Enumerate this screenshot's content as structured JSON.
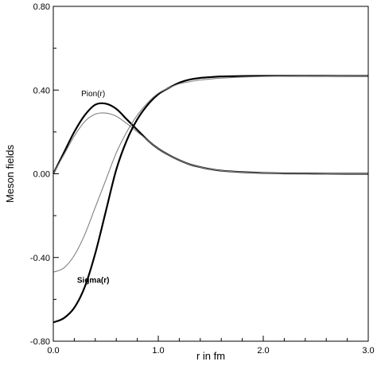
{
  "chart_data": {
    "type": "line",
    "title": "",
    "xlabel": "r in fm",
    "ylabel": "Meson fields",
    "xlim": [
      0.0,
      3.0
    ],
    "ylim": [
      -0.8,
      0.8
    ],
    "x_ticks": [
      0.0,
      1.0,
      2.0,
      3.0
    ],
    "x_tick_labels": [
      "0.0",
      "1.0",
      "2.0",
      "3.0"
    ],
    "y_ticks": [
      -0.8,
      -0.4,
      0.0,
      0.4,
      0.8
    ],
    "y_tick_labels": [
      "-0.80",
      "-0.40",
      "0.00",
      "0.40",
      "0.80"
    ],
    "grid": false,
    "annotations": [
      {
        "text": "Pion(r)",
        "x": 0.38,
        "y": 0.37,
        "bold": false
      },
      {
        "text": "Sigma(r)",
        "x": 0.38,
        "y": -0.52,
        "bold": true
      }
    ],
    "series": [
      {
        "color": "#000000",
        "weight": "thick",
        "x": [
          0.0,
          0.1,
          0.2,
          0.3,
          0.4,
          0.5,
          0.6,
          0.7,
          0.8,
          0.9,
          1.0,
          1.1,
          1.2,
          1.3,
          1.4,
          1.5,
          1.6,
          1.8,
          2.0,
          2.2,
          2.5,
          2.8,
          3.0
        ],
        "y": [
          0.0,
          0.1,
          0.2,
          0.28,
          0.33,
          0.335,
          0.31,
          0.26,
          0.21,
          0.16,
          0.12,
          0.09,
          0.065,
          0.045,
          0.032,
          0.022,
          0.015,
          0.008,
          0.004,
          0.002,
          0.001,
          0.0,
          0.0
        ]
      },
      {
        "color": "#808080",
        "weight": "thin",
        "x": [
          0.0,
          0.1,
          0.2,
          0.3,
          0.4,
          0.5,
          0.6,
          0.7,
          0.8,
          0.9,
          1.0,
          1.1,
          1.2,
          1.3,
          1.4,
          1.5,
          1.6,
          1.8,
          2.0,
          2.2,
          2.5,
          2.8,
          3.0
        ],
        "y": [
          0.0,
          0.09,
          0.18,
          0.25,
          0.285,
          0.29,
          0.275,
          0.24,
          0.2,
          0.16,
          0.12,
          0.09,
          0.065,
          0.045,
          0.032,
          0.022,
          0.015,
          0.008,
          0.004,
          0.002,
          0.001,
          0.0,
          0.0
        ]
      },
      {
        "color": "#000000",
        "weight": "thick",
        "x": [
          0.0,
          0.1,
          0.2,
          0.3,
          0.4,
          0.5,
          0.6,
          0.7,
          0.8,
          0.9,
          1.0,
          1.1,
          1.2,
          1.3,
          1.4,
          1.5,
          1.6,
          1.8,
          2.0,
          2.2,
          2.5,
          2.8,
          3.0
        ],
        "y": [
          -0.71,
          -0.69,
          -0.64,
          -0.54,
          -0.38,
          -0.18,
          0.02,
          0.16,
          0.26,
          0.33,
          0.38,
          0.41,
          0.435,
          0.45,
          0.458,
          0.462,
          0.465,
          0.467,
          0.468,
          0.468,
          0.468,
          0.468,
          0.468
        ]
      },
      {
        "color": "#808080",
        "weight": "thin",
        "x": [
          0.0,
          0.1,
          0.2,
          0.3,
          0.4,
          0.5,
          0.6,
          0.7,
          0.8,
          0.9,
          1.0,
          1.1,
          1.2,
          1.3,
          1.4,
          1.5,
          1.6,
          1.8,
          2.0,
          2.2,
          2.5,
          2.8,
          3.0
        ],
        "y": [
          -0.47,
          -0.45,
          -0.39,
          -0.29,
          -0.16,
          -0.03,
          0.1,
          0.2,
          0.28,
          0.34,
          0.385,
          0.41,
          0.43,
          0.44,
          0.448,
          0.453,
          0.457,
          0.462,
          0.465,
          0.466,
          0.467,
          0.468,
          0.468
        ]
      }
    ]
  }
}
